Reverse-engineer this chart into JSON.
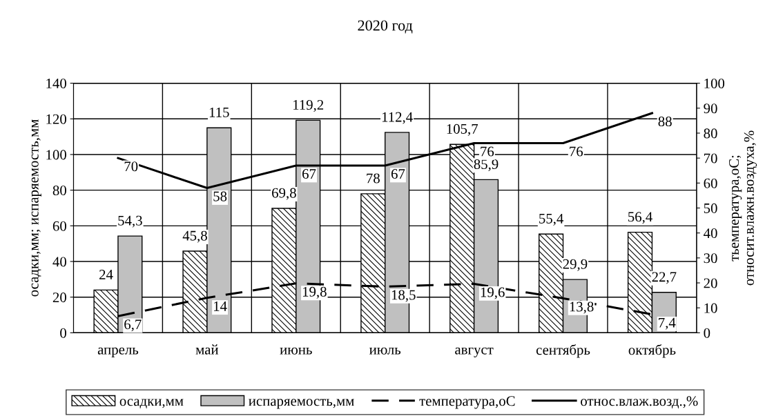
{
  "chart_data": {
    "type": "bar",
    "title": "2020 год",
    "ylabel": "осадки,мм; испаряемость,мм",
    "y2label": "тьемпература,оС;\nотносит.влажн.воздуха,%",
    "categories": [
      "апрель",
      "май",
      "июнь",
      "июль",
      "август",
      "сентябрь",
      "октябрь"
    ],
    "series": [
      {
        "name": "осадки,мм",
        "color": "#000000",
        "values": [
          24,
          45.8,
          69.8,
          78,
          105.7,
          55.4,
          56.4
        ],
        "value_labels": [
          "24",
          "45,8",
          "69,8",
          "78",
          "105,7",
          "55,4",
          "56,4"
        ]
      },
      {
        "name": "испаряемость,мм",
        "color": "#c0c0c0",
        "values": [
          54.3,
          115,
          119.2,
          112.4,
          85.9,
          29.9,
          22.7
        ],
        "value_labels": [
          "54,3",
          "115",
          "119,2",
          "112,4",
          "85,9",
          "29,9",
          "22,7"
        ]
      },
      {
        "name": "температура,оС",
        "type": "line",
        "axis": "y2",
        "color": "#000000",
        "line_style": "dashed",
        "values": [
          6.7,
          14,
          19.8,
          18.5,
          19.6,
          13.8,
          7.4
        ],
        "value_labels": [
          "6,7",
          "14",
          "19,8",
          "18,5",
          "19,6",
          "13,8",
          "7,4"
        ]
      },
      {
        "name": "относ.влаж.возд.,%",
        "type": "line",
        "axis": "y2",
        "color": "#000000",
        "line_style": "solid",
        "values": [
          70,
          58,
          67,
          67,
          76,
          76,
          88
        ],
        "value_labels": [
          "70",
          "58",
          "67",
          "67",
          "76",
          "76",
          "88"
        ]
      }
    ],
    "ylim": [
      0,
      140
    ],
    "yticks": [
      0,
      20,
      40,
      60,
      80,
      100,
      120,
      140
    ],
    "y2lim": [
      0,
      100
    ],
    "y2ticks": [
      0,
      10,
      20,
      30,
      40,
      50,
      60,
      70,
      80,
      90,
      100
    ],
    "grid": true,
    "legend": "bottom",
    "marker": "none"
  }
}
